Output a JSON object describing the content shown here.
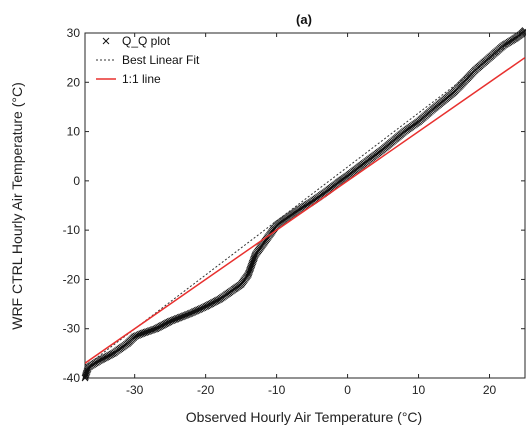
{
  "chart_data": {
    "type": "scatter",
    "title": "(a)",
    "xlabel": "Observed Hourly Air Temperature (°C)",
    "ylabel": "WRF CTRL Hourly Air Temperature (°C)",
    "xlim": [
      -37,
      25
    ],
    "ylim": [
      -40,
      30
    ],
    "xticks": [
      -30,
      -20,
      -10,
      0,
      10,
      20
    ],
    "yticks": [
      -40,
      -30,
      -20,
      -10,
      0,
      10,
      20,
      30
    ],
    "grid": false,
    "legend_position": "top-left",
    "series": [
      {
        "name": "Q_Q plot",
        "kind": "markers",
        "marker": "x",
        "color": "#111111",
        "points": [
          [
            -37.0,
            -40.0
          ],
          [
            -36.8,
            -39.0
          ],
          [
            -36.5,
            -37.8
          ],
          [
            -35.0,
            -36.5
          ],
          [
            -33.0,
            -35.0
          ],
          [
            -31.0,
            -33.0
          ],
          [
            -30.0,
            -31.6
          ],
          [
            -29.0,
            -31.0
          ],
          [
            -27.0,
            -30.0
          ],
          [
            -25.0,
            -28.5
          ],
          [
            -22.0,
            -26.8
          ],
          [
            -20.0,
            -25.5
          ],
          [
            -18.0,
            -24.0
          ],
          [
            -16.0,
            -22.0
          ],
          [
            -15.0,
            -21.0
          ],
          [
            -14.0,
            -19.0
          ],
          [
            -13.0,
            -15.0
          ],
          [
            -12.0,
            -13.0
          ],
          [
            -11.0,
            -11.0
          ],
          [
            -10.0,
            -9.0
          ],
          [
            -8.5,
            -7.5
          ],
          [
            -7.0,
            -6.0
          ],
          [
            -5.0,
            -4.2
          ],
          [
            -3.0,
            -2.2
          ],
          [
            -1.0,
            0.0
          ],
          [
            0.0,
            1.0
          ],
          [
            2.0,
            3.2
          ],
          [
            5.0,
            6.4
          ],
          [
            8.0,
            10.0
          ],
          [
            10.0,
            12.0
          ],
          [
            12.0,
            14.5
          ],
          [
            15.0,
            18.0
          ],
          [
            18.0,
            22.5
          ],
          [
            20.0,
            25.0
          ],
          [
            22.0,
            27.5
          ],
          [
            23.5,
            28.8
          ],
          [
            24.5,
            29.8
          ],
          [
            25.0,
            30.5
          ]
        ]
      },
      {
        "name": "Best Linear Fit",
        "kind": "line",
        "style": "dotted",
        "color": "#333333",
        "points": [
          [
            -37,
            -37.7
          ],
          [
            25,
            30.2
          ]
        ]
      },
      {
        "name": "1:1 line",
        "kind": "line",
        "style": "solid",
        "color": "#e8312f",
        "points": [
          [
            -37,
            -37
          ],
          [
            25,
            25
          ]
        ]
      }
    ]
  }
}
